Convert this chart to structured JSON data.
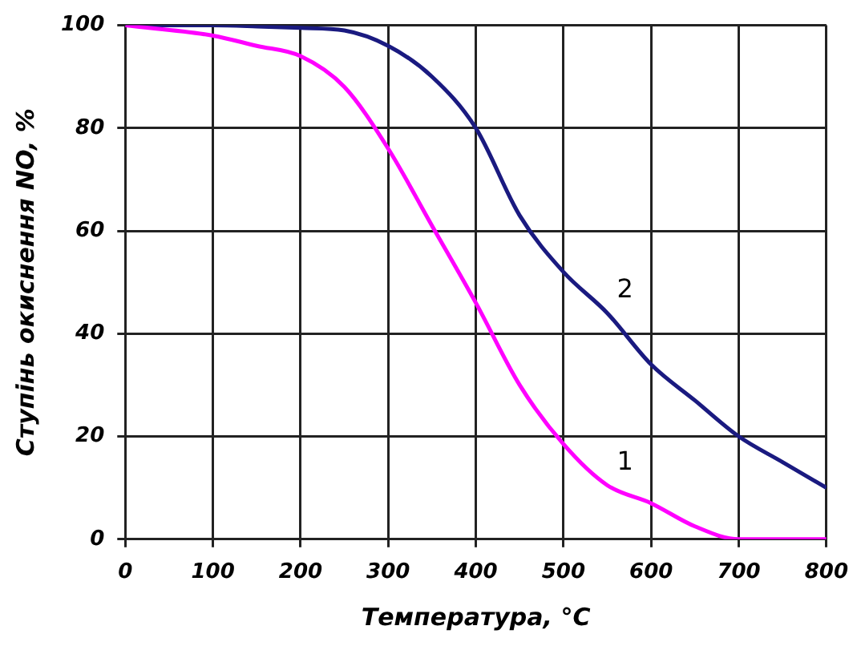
{
  "chart_data": {
    "type": "line",
    "xlabel": "Температура, °С",
    "ylabel": "Ступінь окиснення NO, %",
    "x": [
      0,
      100,
      150,
      200,
      250,
      300,
      350,
      400,
      450,
      500,
      550,
      600,
      650,
      700,
      750,
      800
    ],
    "series": [
      {
        "name": "1",
        "color": "#ff00ff",
        "values": [
          100,
          98,
          96,
          94,
          88,
          76,
          61,
          46,
          30,
          18.5,
          10.5,
          7,
          2.5,
          0,
          0,
          0
        ]
      },
      {
        "name": "2",
        "color": "#1a1a80",
        "values": [
          100,
          100,
          99.8,
          99.5,
          99,
          96,
          90,
          80,
          63,
          52,
          44,
          34,
          27,
          20,
          15,
          10
        ]
      }
    ],
    "xlim": [
      0,
      800
    ],
    "xticks": [
      0,
      100,
      200,
      300,
      400,
      500,
      600,
      700,
      800
    ],
    "ylim": [
      0,
      100
    ],
    "yticks": [
      0,
      20,
      40,
      60,
      80,
      100
    ],
    "grid": true,
    "legend": false,
    "marker": "none",
    "line_style": "solid"
  }
}
